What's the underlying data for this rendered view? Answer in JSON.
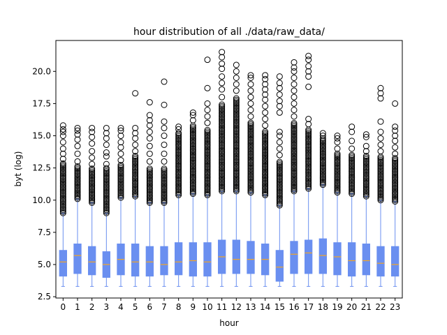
{
  "chart_data": {
    "type": "box",
    "title": "hour distribution of all ./data/raw_data/",
    "xlabel": "hour",
    "ylabel": "byt (log)",
    "ylim": [
      2.4,
      22.4
    ],
    "yticks": [
      2.5,
      5.0,
      7.5,
      10.0,
      12.5,
      15.0,
      17.5,
      20.0
    ],
    "ytick_labels": [
      "2.5",
      "5.0",
      "7.5",
      "10.0",
      "12.5",
      "15.0",
      "17.5",
      "20.0"
    ],
    "categories": [
      "0",
      "1",
      "2",
      "3",
      "4",
      "5",
      "6",
      "7",
      "8",
      "9",
      "10",
      "11",
      "12",
      "13",
      "14",
      "15",
      "16",
      "17",
      "18",
      "19",
      "20",
      "21",
      "22",
      "23"
    ],
    "grid": false,
    "legend": "none",
    "colors": {
      "box": "#6a8ff0",
      "median": "#f5a623",
      "whisker": "#6a8ff0",
      "outlier": "#000000"
    },
    "boxes": [
      {
        "whislo": 3.3,
        "q1": 4.1,
        "med": 5.2,
        "q3": 6.1,
        "whishi": 9.0,
        "fliers_dense": [
          9.0,
          12.9
        ],
        "fliers": [
          13.2,
          13.6,
          14.0,
          14.5,
          15.0,
          15.3,
          15.5,
          15.8
        ]
      },
      {
        "whislo": 3.3,
        "q1": 4.3,
        "med": 5.7,
        "q3": 6.6,
        "whishi": 10.1,
        "fliers_dense": [
          10.1,
          12.7
        ],
        "fliers": [
          13.0,
          13.6,
          14.2,
          14.7,
          15.1,
          15.4,
          15.6
        ]
      },
      {
        "whislo": 3.3,
        "q1": 4.2,
        "med": 5.2,
        "q3": 6.4,
        "whishi": 9.8,
        "fliers_dense": [
          9.8,
          12.5
        ],
        "fliers": [
          12.8,
          13.3,
          13.8,
          14.4,
          14.9,
          15.3,
          15.6
        ]
      },
      {
        "whislo": 3.3,
        "q1": 4.0,
        "med": 5.0,
        "q3": 6.0,
        "whishi": 9.0,
        "fliers_dense": [
          9.0,
          12.5
        ],
        "fliers": [
          12.8,
          13.4,
          13.7,
          14.3,
          14.8,
          15.2,
          15.6
        ]
      },
      {
        "whislo": 3.3,
        "q1": 4.2,
        "med": 5.4,
        "q3": 6.6,
        "whishi": 10.2,
        "fliers_dense": [
          10.2,
          12.8
        ],
        "fliers": [
          13.1,
          13.6,
          14.1,
          14.5,
          15.0,
          15.4,
          15.6
        ]
      },
      {
        "whislo": 3.3,
        "q1": 4.1,
        "med": 5.2,
        "q3": 6.6,
        "whishi": 10.3,
        "fliers_dense": [
          10.3,
          13.5
        ],
        "fliers": [
          13.8,
          14.3,
          14.8,
          15.2,
          15.6,
          18.3
        ]
      },
      {
        "whislo": 3.3,
        "q1": 4.1,
        "med": 5.2,
        "q3": 6.4,
        "whishi": 9.8,
        "fliers_dense": [
          9.8,
          12.5
        ],
        "fliers": [
          13.0,
          13.6,
          14.2,
          14.8,
          15.3,
          15.8,
          16.2,
          16.6,
          17.6
        ]
      },
      {
        "whislo": 3.3,
        "q1": 4.2,
        "med": 5.0,
        "q3": 6.4,
        "whishi": 9.8,
        "fliers_dense": [
          9.8,
          12.5
        ],
        "fliers": [
          13.0,
          13.6,
          14.3,
          15.0,
          15.6,
          16.1,
          17.4,
          19.2
        ]
      },
      {
        "whislo": 3.3,
        "q1": 4.2,
        "med": 5.2,
        "q3": 6.7,
        "whishi": 10.4,
        "fliers_dense": [
          10.4,
          15.2
        ],
        "fliers": [
          15.5,
          15.7
        ]
      },
      {
        "whislo": 3.3,
        "q1": 4.1,
        "med": 5.3,
        "q3": 6.7,
        "whishi": 10.5,
        "fliers_dense": [
          10.5,
          15.8
        ],
        "fliers": [
          16.2,
          16.6,
          16.8
        ]
      },
      {
        "whislo": 3.3,
        "q1": 4.1,
        "med": 5.2,
        "q3": 6.7,
        "whishi": 10.4,
        "fliers_dense": [
          10.4,
          15.5
        ],
        "fliers": [
          16.0,
          16.5,
          17.0,
          17.5,
          18.7,
          20.9
        ]
      },
      {
        "whislo": 3.3,
        "q1": 4.3,
        "med": 5.6,
        "q3": 6.9,
        "whishi": 10.7,
        "fliers_dense": [
          10.7,
          17.5
        ],
        "fliers": [
          18.0,
          18.6,
          19.1,
          19.6,
          20.2,
          20.6,
          21.1,
          21.5
        ]
      },
      {
        "whislo": 3.3,
        "q1": 4.3,
        "med": 5.4,
        "q3": 6.9,
        "whishi": 10.7,
        "fliers_dense": [
          10.7,
          18.0
        ],
        "fliers": [
          18.5,
          19.0,
          19.5,
          20.0,
          20.5
        ]
      },
      {
        "whislo": 3.3,
        "q1": 4.3,
        "med": 5.4,
        "q3": 6.8,
        "whishi": 10.6,
        "fliers_dense": [
          10.6,
          16.0
        ],
        "fliers": [
          16.5,
          17.0,
          17.5,
          18.0,
          18.5,
          19.0,
          19.5,
          19.7
        ]
      },
      {
        "whislo": 3.3,
        "q1": 4.2,
        "med": 5.4,
        "q3": 6.6,
        "whishi": 10.4,
        "fliers_dense": [
          10.4,
          15.4
        ],
        "fliers": [
          15.8,
          16.3,
          16.8,
          17.3,
          17.8,
          18.2,
          18.6,
          19.0,
          19.4,
          19.7
        ]
      },
      {
        "whislo": 3.3,
        "q1": 3.7,
        "med": 4.8,
        "q3": 6.1,
        "whishi": 9.6,
        "fliers_dense": [
          9.6,
          13.0
        ],
        "fliers": [
          13.5,
          14.0,
          14.5,
          15.0,
          15.3,
          16.8,
          17.3,
          17.7,
          18.2,
          18.7,
          19.1,
          19.6
        ]
      },
      {
        "whislo": 3.3,
        "q1": 4.3,
        "med": 5.8,
        "q3": 6.8,
        "whishi": 10.7,
        "fliers_dense": [
          10.7,
          16.0
        ],
        "fliers": [
          16.5,
          17.0,
          17.5,
          18.0,
          18.5,
          19.0,
          19.5,
          20.0,
          20.3,
          20.7
        ]
      },
      {
        "whislo": 3.3,
        "q1": 4.3,
        "med": 5.9,
        "q3": 6.9,
        "whishi": 10.9,
        "fliers_dense": [
          10.9,
          15.5
        ],
        "fliers": [
          15.9,
          16.3,
          18.8,
          19.6,
          20.0,
          20.4,
          20.9,
          21.2
        ]
      },
      {
        "whislo": 3.3,
        "q1": 4.3,
        "med": 5.7,
        "q3": 7.0,
        "whishi": 11.2,
        "fliers_dense": [
          11.2,
          14.8
        ],
        "fliers": [
          15.0,
          15.2
        ]
      },
      {
        "whislo": 3.3,
        "q1": 4.2,
        "med": 5.6,
        "q3": 6.7,
        "whishi": 10.6,
        "fliers_dense": [
          10.6,
          13.7
        ],
        "fliers": [
          14.0,
          14.5,
          14.8,
          15.0
        ]
      },
      {
        "whislo": 3.3,
        "q1": 4.1,
        "med": 5.3,
        "q3": 6.7,
        "whishi": 10.5,
        "fliers_dense": [
          10.5,
          13.6
        ],
        "fliers": [
          14.0,
          14.6,
          15.3,
          15.7
        ]
      },
      {
        "whislo": 3.3,
        "q1": 4.2,
        "med": 5.3,
        "q3": 6.6,
        "whishi": 10.3,
        "fliers_dense": [
          10.3,
          13.5
        ],
        "fliers": [
          13.8,
          14.2,
          14.9,
          15.1
        ]
      },
      {
        "whislo": 3.3,
        "q1": 4.1,
        "med": 5.1,
        "q3": 6.4,
        "whishi": 10.0,
        "fliers_dense": [
          10.0,
          13.4
        ],
        "fliers": [
          13.8,
          14.3,
          14.8,
          15.3,
          16.1,
          17.9,
          18.3,
          18.7
        ]
      },
      {
        "whislo": 3.3,
        "q1": 4.1,
        "med": 5.0,
        "q3": 6.4,
        "whishi": 9.9,
        "fliers_dense": [
          9.9,
          13.3
        ],
        "fliers": [
          13.6,
          14.1,
          14.6,
          15.0,
          15.4,
          15.7,
          17.5
        ]
      }
    ]
  }
}
